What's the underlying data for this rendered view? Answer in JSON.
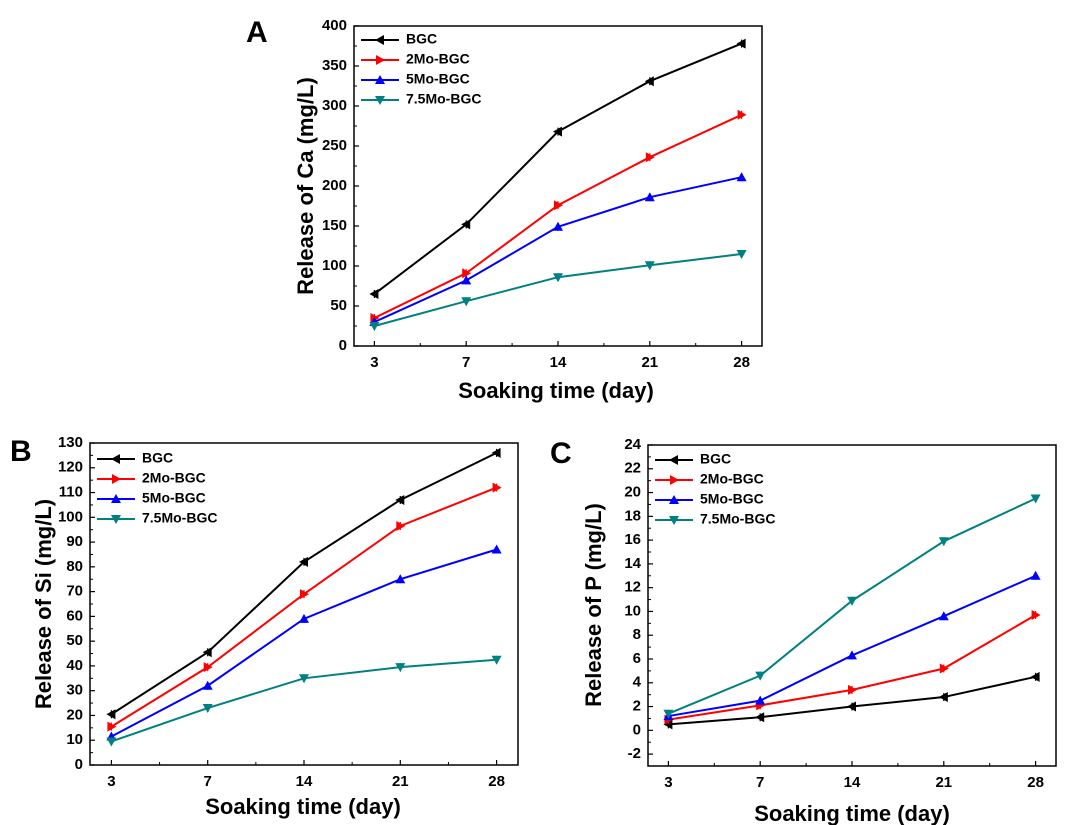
{
  "chart_data": [
    {
      "panel": "A",
      "type": "line",
      "xlabel": "Soaking time (day)",
      "ylabel": "Release of Ca (mg/L)",
      "categories": [
        "3",
        "7",
        "14",
        "21",
        "28"
      ],
      "ylim": [
        0,
        400
      ],
      "yticks": [
        0,
        50,
        100,
        150,
        200,
        250,
        300,
        350,
        400
      ],
      "legend_position": "top-left",
      "series": [
        {
          "name": "BGC",
          "color": "#000000",
          "marker": "left-triangle",
          "values": [
            65,
            152,
            268,
            331,
            378
          ]
        },
        {
          "name": "2Mo-BGC",
          "color": "#ff0000",
          "marker": "right-triangle",
          "values": [
            35,
            91,
            176,
            236,
            289
          ]
        },
        {
          "name": "5Mo-BGC",
          "color": "#0000ff",
          "marker": "up-triangle",
          "values": [
            30,
            82,
            149,
            186,
            211
          ]
        },
        {
          "name": "7.5Mo-BGC",
          "color": "#008080",
          "marker": "down-triangle",
          "values": [
            25,
            56,
            86,
            101,
            115
          ]
        }
      ]
    },
    {
      "panel": "B",
      "type": "line",
      "xlabel": "Soaking time (day)",
      "ylabel": "Release of Si (mg/L)",
      "categories": [
        "3",
        "7",
        "14",
        "21",
        "28"
      ],
      "ylim": [
        0,
        130
      ],
      "yticks": [
        0,
        10,
        20,
        30,
        40,
        50,
        60,
        70,
        80,
        90,
        100,
        110,
        120,
        130
      ],
      "legend_position": "top-left",
      "series": [
        {
          "name": "BGC",
          "color": "#000000",
          "marker": "left-triangle",
          "values": [
            20.5,
            45.5,
            82,
            107,
            126
          ]
        },
        {
          "name": "2Mo-BGC",
          "color": "#ff0000",
          "marker": "right-triangle",
          "values": [
            15.5,
            39.5,
            69,
            96.5,
            112
          ]
        },
        {
          "name": "5Mo-BGC",
          "color": "#0000ff",
          "marker": "up-triangle",
          "values": [
            11.5,
            32,
            59,
            75,
            87
          ]
        },
        {
          "name": "7.5Mo-BGC",
          "color": "#008080",
          "marker": "down-triangle",
          "values": [
            9.5,
            23,
            35,
            39.5,
            42.5
          ]
        }
      ]
    },
    {
      "panel": "C",
      "type": "line",
      "xlabel": "Soaking time (day)",
      "ylabel": "Release of P (mg/L)",
      "categories": [
        "3",
        "7",
        "14",
        "21",
        "28"
      ],
      "ylim": [
        -3,
        24
      ],
      "yticks": [
        -2,
        0,
        2,
        4,
        6,
        8,
        10,
        12,
        14,
        16,
        18,
        20,
        22,
        24
      ],
      "legend_position": "top-left",
      "series": [
        {
          "name": "BGC",
          "color": "#000000",
          "marker": "left-triangle",
          "values": [
            0.5,
            1.1,
            2.0,
            2.8,
            4.5
          ]
        },
        {
          "name": "2Mo-BGC",
          "color": "#ff0000",
          "marker": "right-triangle",
          "values": [
            0.9,
            2.1,
            3.4,
            5.2,
            9.7
          ]
        },
        {
          "name": "5Mo-BGC",
          "color": "#0000ff",
          "marker": "up-triangle",
          "values": [
            1.2,
            2.5,
            6.3,
            9.6,
            13.0
          ]
        },
        {
          "name": "7.5Mo-BGC",
          "color": "#008080",
          "marker": "down-triangle",
          "values": [
            1.4,
            4.6,
            10.9,
            15.9,
            19.5
          ]
        }
      ]
    }
  ]
}
